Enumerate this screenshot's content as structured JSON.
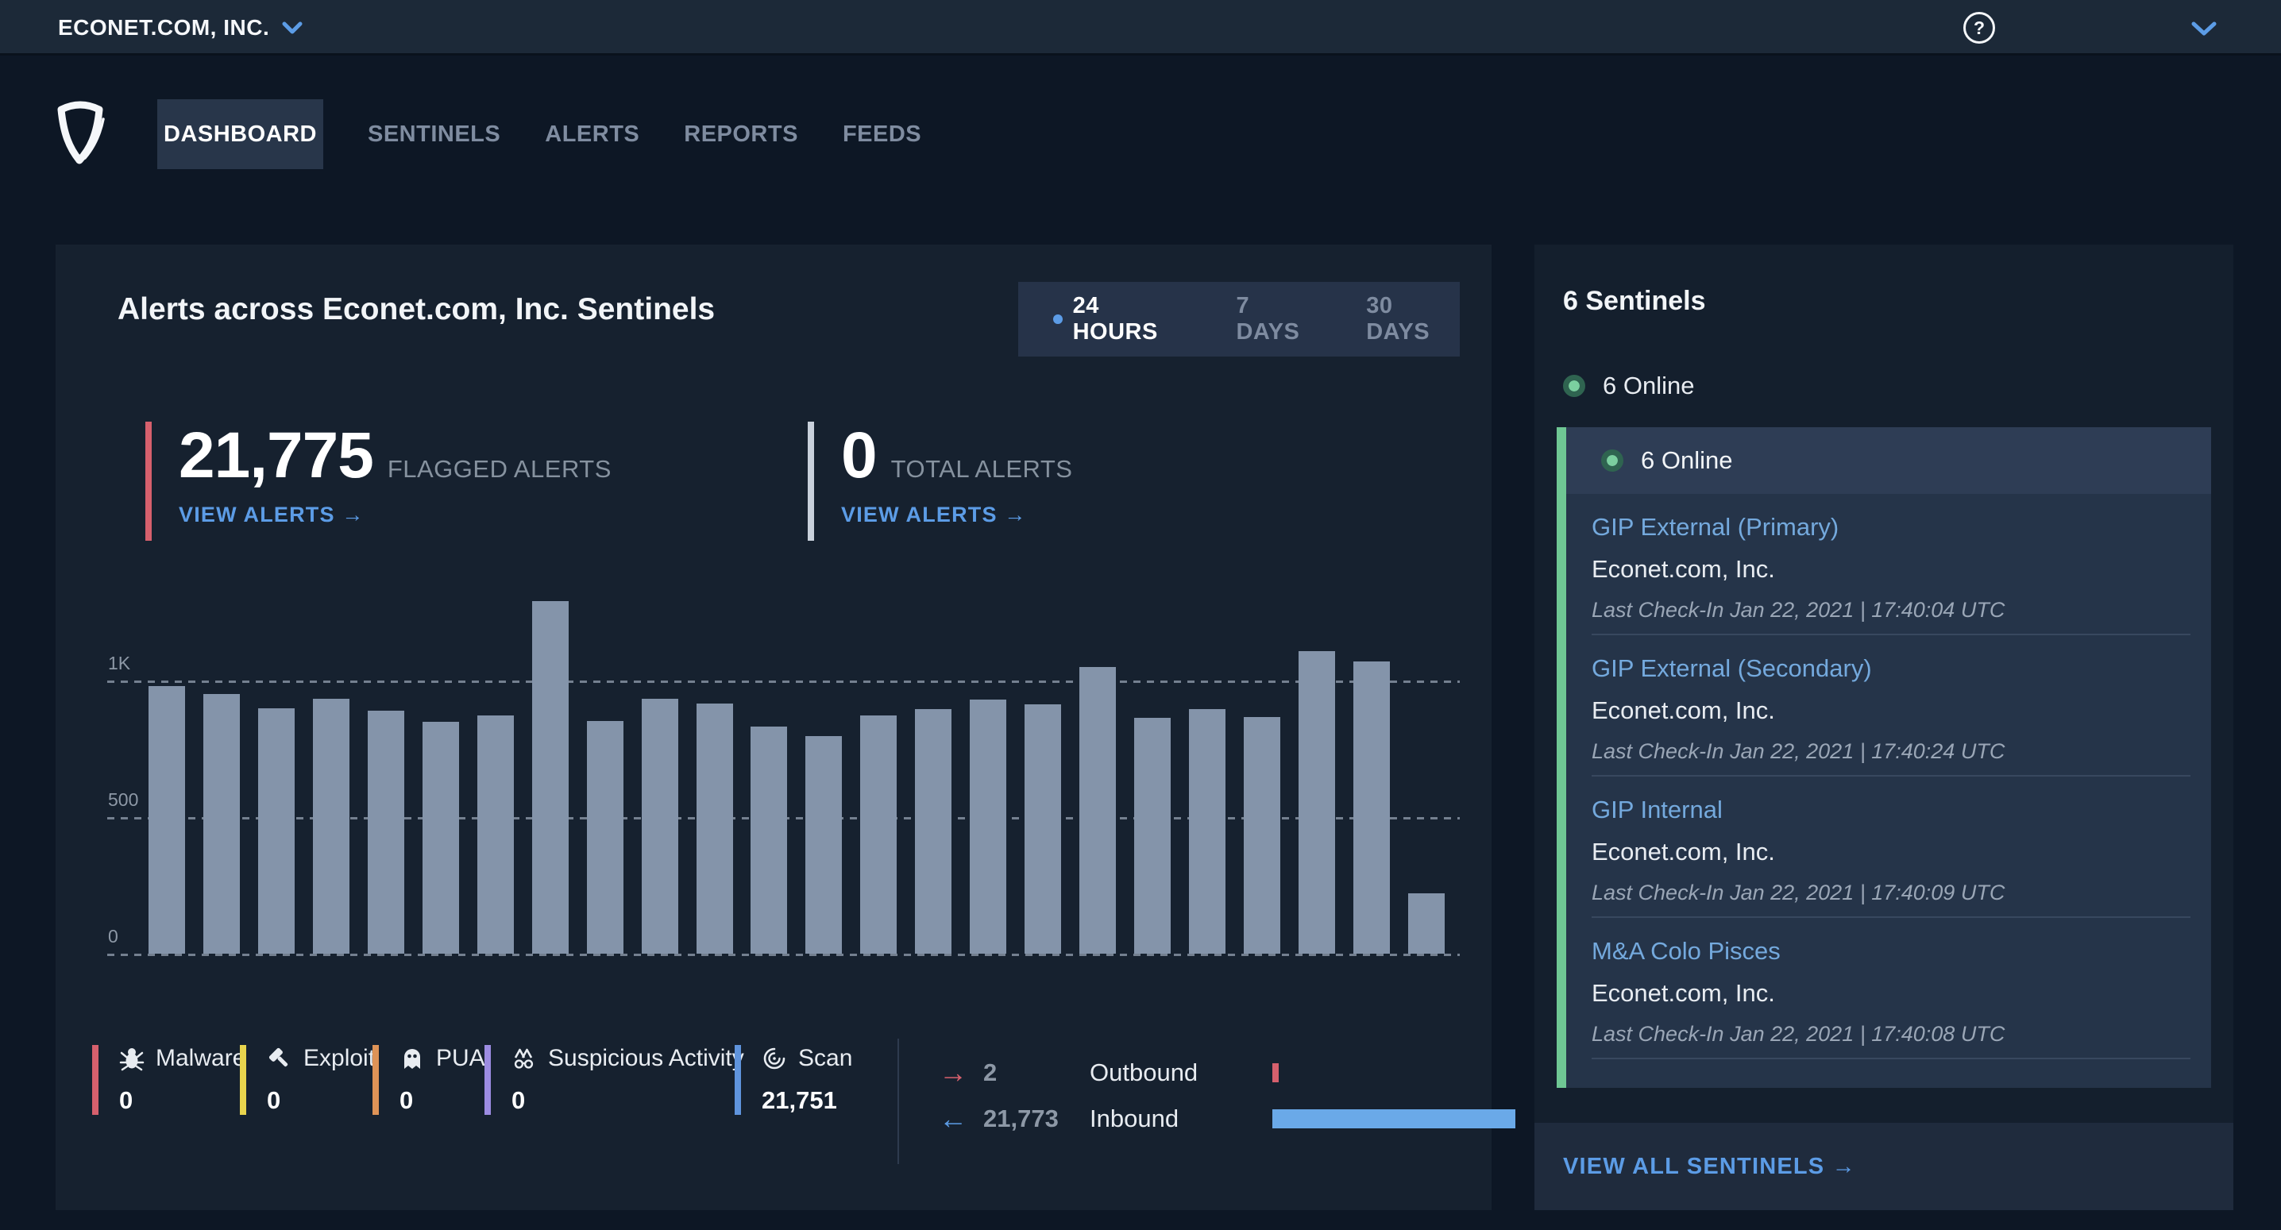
{
  "topbar": {
    "org_name": "ECONET.COM, INC.",
    "help_glyph": "?"
  },
  "nav": {
    "items": [
      {
        "label": "DASHBOARD",
        "active": true
      },
      {
        "label": "SENTINELS",
        "active": false
      },
      {
        "label": "ALERTS",
        "active": false
      },
      {
        "label": "REPORTS",
        "active": false
      },
      {
        "label": "FEEDS",
        "active": false
      }
    ]
  },
  "main_panel": {
    "title": "Alerts across Econet.com, Inc. Sentinels",
    "time_tabs": [
      {
        "label": "24 HOURS",
        "active": true
      },
      {
        "label": "7 DAYS",
        "active": false
      },
      {
        "label": "30 DAYS",
        "active": false
      }
    ],
    "stats": [
      {
        "value": "21,775",
        "label": "FLAGGED ALERTS",
        "link": "VIEW ALERTS →",
        "accent": "#d6606d"
      },
      {
        "value": "0",
        "label": "TOTAL ALERTS",
        "link": "VIEW ALERTS →",
        "accent": "#c9d1dc"
      }
    ],
    "legend": [
      {
        "label": "Malware",
        "value": "0",
        "color": "#d6606d",
        "icon": "malware-bug-icon"
      },
      {
        "label": "Exploit",
        "value": "0",
        "color": "#e8d44d",
        "icon": "exploit-hammer-icon"
      },
      {
        "label": "PUA",
        "value": "0",
        "color": "#de9357",
        "icon": "pua-ghost-icon"
      },
      {
        "label": "Suspicious Activity",
        "value": "0",
        "color": "#9c8ce2",
        "icon": "suspicious-disguise-icon"
      },
      {
        "label": "Scan",
        "value": "21,751",
        "color": "#5f94dd",
        "icon": "scan-swirl-icon"
      }
    ],
    "traffic": {
      "outbound": {
        "arrow": "→",
        "value": "2",
        "label": "Outbound",
        "color": "#d6606d"
      },
      "inbound": {
        "arrow": "←",
        "value": "21,773",
        "label": "Inbound",
        "color": "#6aa9e8"
      }
    }
  },
  "chart_data": {
    "type": "bar",
    "title": "Alerts across Econet.com, Inc. Sentinels — flagged alerts per hour (24 hours)",
    "values": [
      980,
      951,
      897,
      934,
      890,
      848,
      871,
      1292,
      852,
      934,
      916,
      830,
      796,
      871,
      895,
      930,
      914,
      1050,
      864,
      895,
      867,
      1108,
      1070,
      222
    ],
    "y_ticks": [
      "0",
      "500",
      "1K"
    ],
    "ylim": [
      0,
      1300
    ],
    "bar_color": "#8494aa",
    "grid": "dashed horizontal lines at 0, 500, 1K",
    "legend_position": "bottom"
  },
  "sidebar": {
    "heading": "6 Sentinels",
    "online_summary": "6 Online",
    "panel_header": "6 Online",
    "items": [
      {
        "name": "GIP External (Primary)",
        "org": "Econet.com, Inc.",
        "checkin": "Last Check-In Jan 22, 2021 | 17:40:04 UTC"
      },
      {
        "name": "GIP External (Secondary)",
        "org": "Econet.com, Inc.",
        "checkin": "Last Check-In Jan 22, 2021 | 17:40:24 UTC"
      },
      {
        "name": "GIP Internal",
        "org": "Econet.com, Inc.",
        "checkin": "Last Check-In Jan 22, 2021 | 17:40:09 UTC"
      },
      {
        "name": "M&A Colo Pisces",
        "org": "Econet.com, Inc.",
        "checkin": "Last Check-In Jan 22, 2021 | 17:40:08 UTC"
      }
    ],
    "footer_link": "VIEW ALL SENTINELS →"
  }
}
